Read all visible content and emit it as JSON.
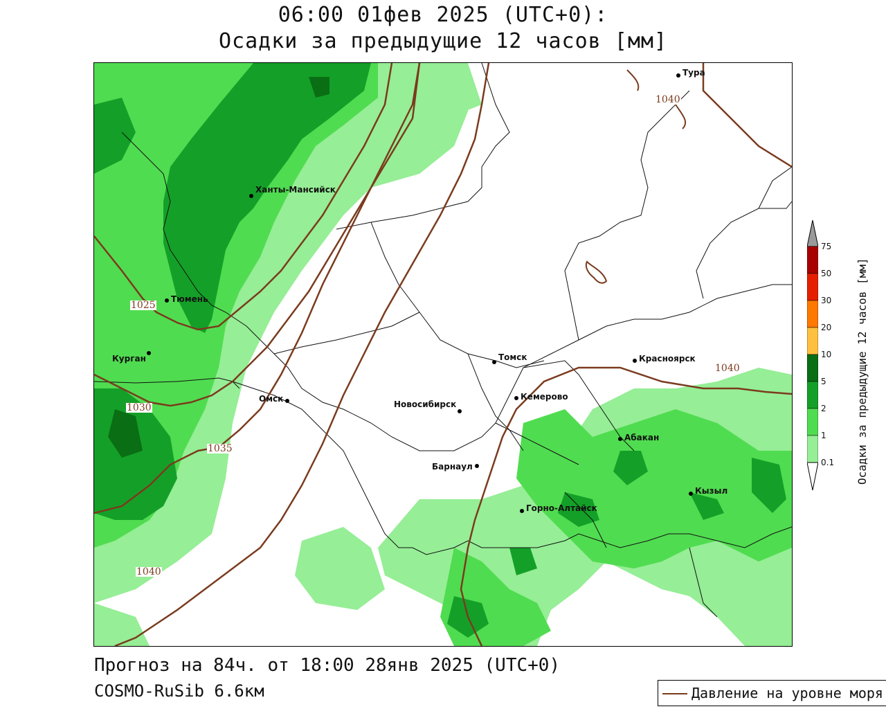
{
  "header": {
    "line1": "06:00 01фев 2025 (UTC+0):",
    "line2": "Осадки за предыдущие 12 часов [мм]"
  },
  "footer": {
    "forecast": "Прогноз на 84ч. от 18:00 28янв 2025 (UTC+0)",
    "model": "COSMO-RuSib 6.6км"
  },
  "legend": {
    "pressure_label": "Давление на уровне моря",
    "pressure_color": "#7a3b1e"
  },
  "colorbar": {
    "label": "Осадки за предыдущие 12 часов [мм]",
    "ticks": [
      "75",
      "50",
      "30",
      "20",
      "10",
      "5",
      "2",
      "1",
      "0.1"
    ],
    "colors": [
      "#9a9a9a",
      "#a80000",
      "#e61e00",
      "#ff7800",
      "#ffc040",
      "#0a6e14",
      "#14a028",
      "#50dc50",
      "#96ee96"
    ]
  },
  "cities": [
    {
      "name": "Тура",
      "key": "tura"
    },
    {
      "name": "Ханты-Мансийск",
      "key": "khanty"
    },
    {
      "name": "Тюмень",
      "key": "tyumen"
    },
    {
      "name": "Курган",
      "key": "kurgan"
    },
    {
      "name": "Омск",
      "key": "omsk"
    },
    {
      "name": "Новосибирск",
      "key": "novosibirsk"
    },
    {
      "name": "Томск",
      "key": "tomsk"
    },
    {
      "name": "Кемерово",
      "key": "kemerovo"
    },
    {
      "name": "Красноярск",
      "key": "krasnoyarsk"
    },
    {
      "name": "Абакан",
      "key": "abakan"
    },
    {
      "name": "Барнаул",
      "key": "barnaul"
    },
    {
      "name": "Горно-Алтайск",
      "key": "gorno"
    },
    {
      "name": "Кызыл",
      "key": "kyzyl"
    }
  ],
  "isobars": [
    "1025",
    "1030",
    "1035",
    "1040",
    "1040",
    "1040"
  ]
}
